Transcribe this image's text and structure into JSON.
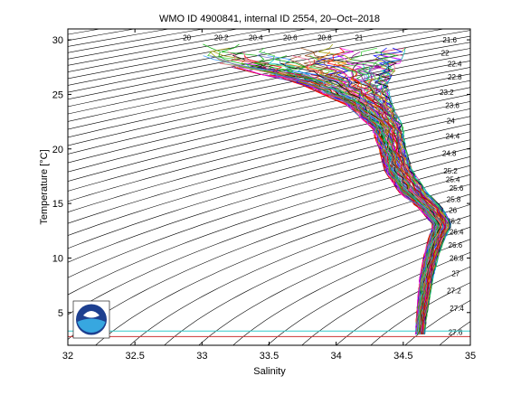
{
  "chart_data": {
    "type": "line",
    "title": "WMO ID 4900841, internal ID 2554, 20–Oct–2018",
    "xlabel": "Salinity",
    "ylabel": "Temperature [°C]",
    "xlim": [
      32,
      35
    ],
    "ylim": [
      2,
      31
    ],
    "x_ticks": [
      "32",
      "32.5",
      "33",
      "33.5",
      "34",
      "34.5",
      "35"
    ],
    "y_ticks": [
      "5",
      "10",
      "15",
      "20",
      "25",
      "30"
    ],
    "grid": false,
    "legend": "none",
    "density_contours": {
      "labels": [
        "20",
        "20.2",
        "20.4",
        "20.6",
        "20.8",
        "21",
        "21.6",
        "22",
        "22.4",
        "22.8",
        "23.2",
        "23.6",
        "24",
        "24.4",
        "24.8",
        "25.2",
        "25.4",
        "25.6",
        "25.8",
        "26",
        "26.2",
        "26.4",
        "26.6",
        "26.8",
        "27",
        "27.2",
        "27.4",
        "27.6",
        "27.8"
      ],
      "step": 0.2,
      "color": "#000000"
    },
    "profile_envelope": {
      "temperature": [
        3,
        5,
        8,
        10,
        11.5,
        13,
        14.5,
        16,
        18,
        20,
        22,
        24,
        26,
        28,
        29.5
      ],
      "salinity_min": [
        34.59,
        34.6,
        34.62,
        34.65,
        34.68,
        34.72,
        34.62,
        34.47,
        34.36,
        34.32,
        34.26,
        34.08,
        33.72,
        33.05,
        32.85
      ],
      "salinity_center": [
        34.63,
        34.64,
        34.67,
        34.7,
        34.74,
        34.82,
        34.73,
        34.58,
        34.47,
        34.42,
        34.37,
        34.23,
        33.95,
        33.6,
        33.4
      ],
      "salinity_max": [
        34.66,
        34.68,
        34.72,
        34.76,
        34.8,
        34.86,
        34.8,
        34.68,
        34.57,
        34.52,
        34.5,
        34.42,
        34.38,
        34.48,
        34.53
      ]
    },
    "profile_count": 90,
    "reference_lines": [
      {
        "temperature": 3.3,
        "color": "#33cccc"
      },
      {
        "temperature": 2.8,
        "color": "#cc3333"
      }
    ],
    "colors": {
      "profiles": [
        "#ff0000",
        "#0000ff",
        "#00aa00",
        "#ff00ff",
        "#00bfbf",
        "#000000",
        "#ff8000",
        "#8b4513",
        "#800080",
        "#999900",
        "#ff6699",
        "#3399ff",
        "#33cc33",
        "#cc0000",
        "#6666cc"
      ]
    }
  },
  "logo": {
    "text": "NOAA",
    "name": "noaa-logo"
  }
}
